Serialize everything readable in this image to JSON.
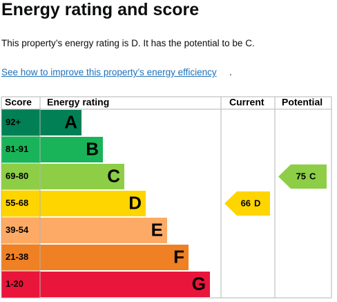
{
  "header": {
    "title": "Energy rating and score"
  },
  "intro": "This property’s energy rating is D. It has the potential to be C.",
  "link": "See how to improve this property’s energy efficiency",
  "link_suffix": ".",
  "table": {
    "columns": [
      "Score",
      "Energy rating",
      "Current",
      "Potential"
    ],
    "bands": [
      {
        "score": "92+",
        "letter": "A",
        "color": "#008054"
      },
      {
        "score": "81-91",
        "letter": "B",
        "color": "#19b459"
      },
      {
        "score": "69-80",
        "letter": "C",
        "color": "#8dce46"
      },
      {
        "score": "55-68",
        "letter": "D",
        "color": "#ffd500"
      },
      {
        "score": "39-54",
        "letter": "E",
        "color": "#fcaa65"
      },
      {
        "score": "21-38",
        "letter": "F",
        "color": "#ef8023"
      },
      {
        "score": "1-20",
        "letter": "G",
        "color": "#e9153b"
      }
    ],
    "current": {
      "value": 66,
      "letter": "D"
    },
    "potential": {
      "value": 75,
      "letter": "C"
    }
  }
}
